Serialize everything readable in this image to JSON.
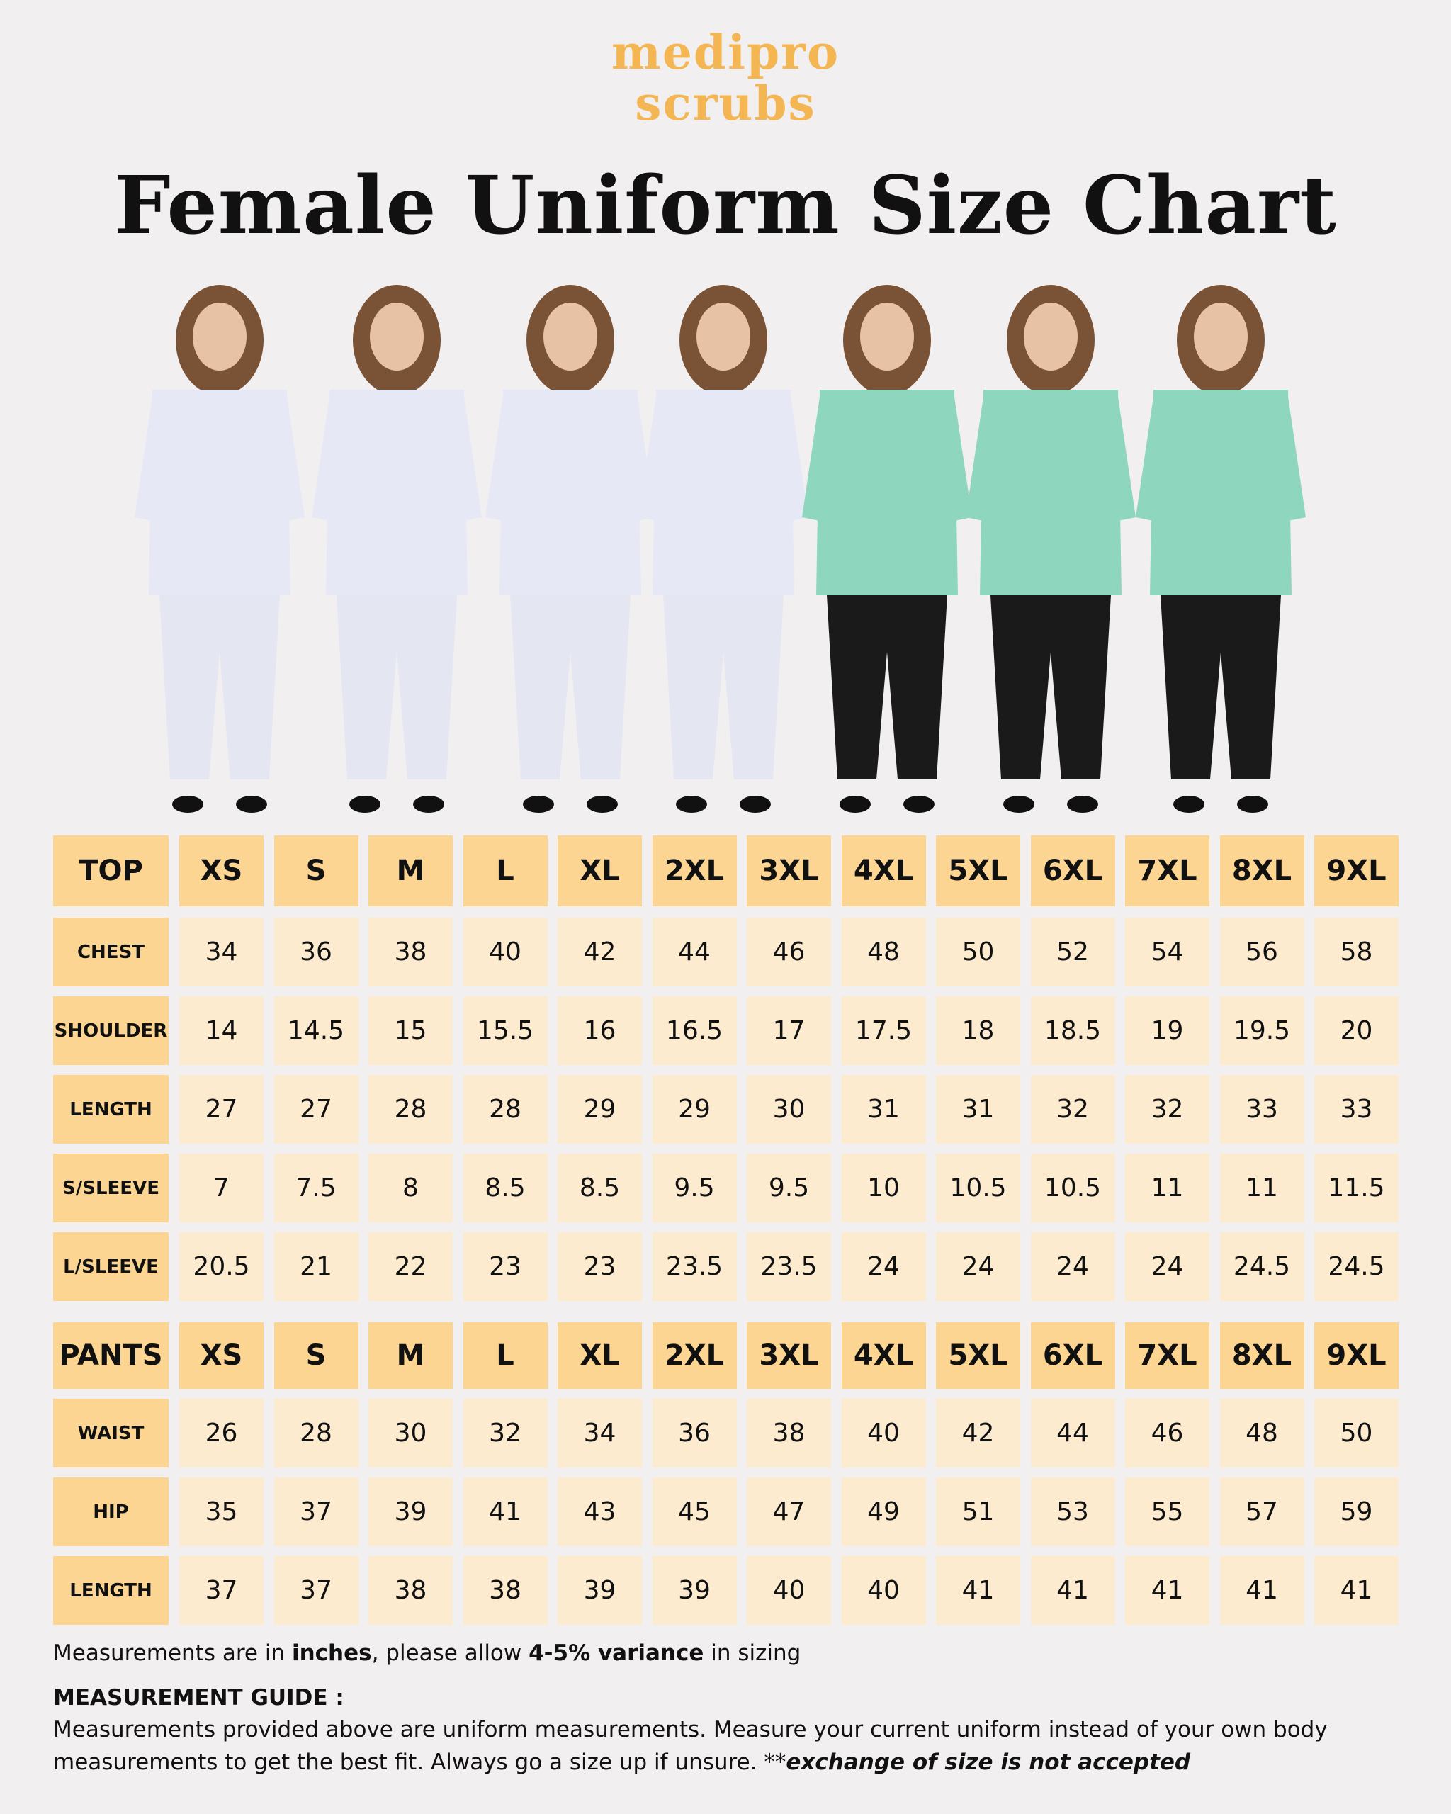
{
  "logo": {
    "line1": "medipro",
    "line2": "scrubs"
  },
  "title": "Female Uniform Size Chart",
  "tables": [
    {
      "header": [
        "TOP",
        "XS",
        "S",
        "M",
        "L",
        "XL",
        "2XL",
        "3XL",
        "4XL",
        "5XL",
        "6XL",
        "7XL",
        "8XL",
        "9XL"
      ],
      "rows": [
        [
          "CHEST",
          "34",
          "36",
          "38",
          "40",
          "42",
          "44",
          "46",
          "48",
          "50",
          "52",
          "54",
          "56",
          "58"
        ],
        [
          "SHOULDER",
          "14",
          "14.5",
          "15",
          "15.5",
          "16",
          "16.5",
          "17",
          "17.5",
          "18",
          "18.5",
          "19",
          "19.5",
          "20"
        ],
        [
          "LENGTH",
          "27",
          "27",
          "28",
          "28",
          "29",
          "29",
          "30",
          "31",
          "31",
          "32",
          "32",
          "33",
          "33"
        ],
        [
          "S/SLEEVE",
          "7",
          "7.5",
          "8",
          "8.5",
          "8.5",
          "9.5",
          "9.5",
          "10",
          "10.5",
          "10.5",
          "11",
          "11",
          "11.5"
        ],
        [
          "L/SLEEVE",
          "20.5",
          "21",
          "22",
          "23",
          "23",
          "23.5",
          "23.5",
          "24",
          "24",
          "24",
          "24",
          "24.5",
          "24.5"
        ]
      ]
    },
    {
      "header": [
        "PANTS",
        "XS",
        "S",
        "M",
        "L",
        "XL",
        "2XL",
        "3XL",
        "4XL",
        "5XL",
        "6XL",
        "7XL",
        "8XL",
        "9XL"
      ],
      "rows": [
        [
          "WAIST",
          "26",
          "28",
          "30",
          "32",
          "34",
          "36",
          "38",
          "40",
          "42",
          "44",
          "46",
          "48",
          "50"
        ],
        [
          "HIP",
          "35",
          "37",
          "39",
          "41",
          "43",
          "45",
          "47",
          "49",
          "51",
          "53",
          "55",
          "57",
          "59"
        ],
        [
          "LENGTH",
          "37",
          "37",
          "38",
          "38",
          "39",
          "39",
          "40",
          "40",
          "41",
          "41",
          "41",
          "41",
          "41"
        ]
      ]
    }
  ],
  "note": {
    "parts": [
      {
        "text": "Measurements are in ",
        "style": "normal"
      },
      {
        "text": "inches",
        "style": "bold"
      },
      {
        "text": ", please allow ",
        "style": "normal"
      },
      {
        "text": "4-5% variance",
        "style": "bold"
      },
      {
        "text": " in sizing",
        "style": "normal"
      }
    ]
  },
  "guide": {
    "heading": "MEASUREMENT GUIDE :",
    "parts": [
      {
        "text": "Measurements provided above are uniform measurements. Measure your current uniform instead of your own body measurements to get the best fit. Always go a size up if unsure. **",
        "style": "normal"
      },
      {
        "text": "exchange of size is not accepted",
        "style": "bold-italic"
      }
    ]
  }
}
